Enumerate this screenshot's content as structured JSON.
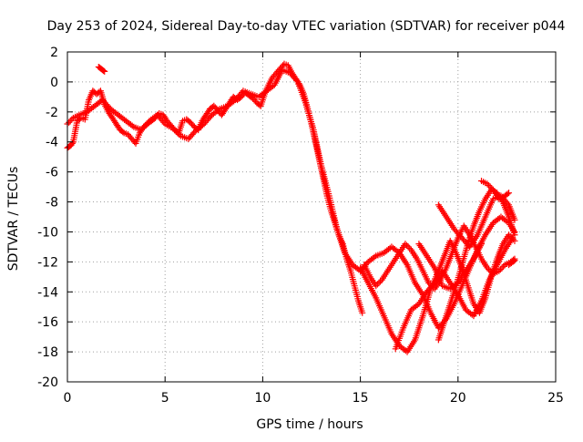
{
  "chart_data": {
    "type": "scatter",
    "title": "Day 253 of 2024, Sidereal Day-to-day VTEC variation (SDTVAR) for receiver p044",
    "xlabel": "GPS time / hours",
    "ylabel": "SDTVAR / TECUs",
    "xlim": [
      0,
      25
    ],
    "ylim": [
      -20,
      2
    ],
    "xticks": [
      "0",
      "5",
      "10",
      "15",
      "20",
      "25"
    ],
    "yticks": [
      "2",
      "0",
      "-2",
      "-4",
      "-6",
      "-8",
      "-10",
      "-12",
      "-14",
      "-16",
      "-18",
      "-20"
    ],
    "grid": true,
    "marker": "plus",
    "color": "#ff0000",
    "series": [
      {
        "x": [
          0.0,
          0.1,
          0.2,
          0.3,
          0.5,
          0.7,
          0.9,
          1.1,
          1.3,
          1.5,
          1.7,
          1.9,
          2.1,
          2.3,
          2.5,
          2.7,
          2.9,
          3.1,
          3.3,
          3.5,
          3.7,
          3.9,
          4.1,
          4.3,
          4.5,
          4.7,
          4.9,
          5.1,
          5.3,
          5.5,
          5.7,
          5.9,
          6.1,
          6.3,
          6.5,
          6.7,
          6.9,
          7.1,
          7.3,
          7.5,
          7.7,
          7.9,
          8.1,
          8.3,
          8.5,
          8.7,
          8.9,
          9.1,
          9.3,
          9.5,
          9.7,
          9.9,
          10.1,
          10.3,
          10.5,
          10.7,
          10.9,
          11.1,
          11.3,
          11.5,
          11.7,
          11.9,
          12.1,
          12.3,
          12.5,
          12.7,
          12.9,
          13.1,
          13.3,
          13.5,
          13.7,
          13.9,
          14.1,
          14.3,
          14.5,
          14.7,
          14.9,
          15.1
        ],
        "y": [
          -4.4,
          -4.3,
          -4.2,
          -4.0,
          -2.6,
          -2.4,
          -2.5,
          -1.2,
          -0.6,
          -0.8,
          -0.6,
          -1.5,
          -2.0,
          -2.4,
          -2.8,
          -3.2,
          -3.4,
          -3.5,
          -3.8,
          -4.1,
          -3.4,
          -3.0,
          -2.8,
          -2.6,
          -2.4,
          -2.1,
          -2.2,
          -2.6,
          -2.9,
          -3.2,
          -3.4,
          -2.6,
          -2.5,
          -2.7,
          -3.0,
          -3.2,
          -2.6,
          -2.2,
          -1.8,
          -1.6,
          -1.9,
          -2.2,
          -1.8,
          -1.4,
          -1.0,
          -1.2,
          -1.0,
          -0.7,
          -0.9,
          -1.1,
          -1.4,
          -1.6,
          -0.8,
          -0.2,
          0.3,
          0.6,
          0.9,
          1.2,
          1.1,
          0.6,
          0.2,
          -0.2,
          -0.8,
          -1.8,
          -2.8,
          -4.0,
          -5.2,
          -6.4,
          -7.6,
          -8.6,
          -9.4,
          -10.2,
          -10.8,
          -11.8,
          -12.6,
          -13.6,
          -14.6,
          -15.4
        ]
      },
      {
        "x": [
          0.0,
          0.3,
          0.6,
          1.0,
          1.4,
          1.8,
          2.2,
          2.6,
          3.0,
          3.4,
          3.8,
          4.2,
          4.6,
          5.0,
          5.4,
          5.8,
          6.2,
          6.6,
          7.0,
          7.4,
          7.8,
          8.2,
          8.6,
          9.0,
          9.4,
          9.8,
          10.2,
          10.6,
          11.0,
          11.4,
          11.8,
          12.2,
          12.6,
          13.0,
          13.4,
          13.8,
          14.2,
          14.6,
          15.0,
          15.4,
          15.8,
          16.2,
          16.6,
          17.0,
          17.4,
          17.8,
          18.2,
          18.6,
          19.0,
          19.4,
          19.8,
          20.2,
          20.6,
          21.0,
          21.4,
          21.8,
          22.2,
          22.6,
          22.9
        ],
        "y": [
          -2.8,
          -2.4,
          -2.2,
          -2.0,
          -1.6,
          -1.2,
          -1.8,
          -2.2,
          -2.6,
          -3.0,
          -3.2,
          -2.6,
          -2.2,
          -2.8,
          -3.1,
          -3.6,
          -3.8,
          -3.2,
          -2.8,
          -2.2,
          -1.8,
          -1.6,
          -1.2,
          -0.6,
          -0.8,
          -1.0,
          -0.6,
          -0.2,
          0.8,
          0.6,
          0.0,
          -1.4,
          -3.2,
          -5.6,
          -7.6,
          -9.8,
          -11.4,
          -12.2,
          -12.6,
          -12.0,
          -11.6,
          -11.4,
          -11.0,
          -11.4,
          -12.2,
          -13.4,
          -14.2,
          -15.4,
          -16.4,
          -15.8,
          -14.8,
          -13.6,
          -12.4,
          -11.2,
          -10.2,
          -9.4,
          -9.0,
          -9.4,
          -10.0
        ]
      },
      {
        "x": [
          15.2,
          15.5,
          15.8,
          16.1,
          16.4,
          16.7,
          17.0,
          17.3,
          17.6,
          17.9,
          18.2,
          18.5,
          18.8,
          19.1,
          19.4,
          19.7,
          20.0,
          20.3,
          20.6,
          20.9,
          21.2,
          21.5,
          21.8,
          22.1,
          22.4,
          22.7,
          22.9
        ],
        "y": [
          -12.2,
          -13.0,
          -13.6,
          -13.2,
          -12.6,
          -12.0,
          -11.4,
          -10.8,
          -11.2,
          -11.8,
          -12.6,
          -13.4,
          -13.8,
          -13.2,
          -12.4,
          -11.4,
          -10.4,
          -9.6,
          -10.2,
          -11.0,
          -11.8,
          -12.4,
          -12.8,
          -12.6,
          -12.2,
          -12.0,
          -11.8
        ]
      },
      {
        "x": [
          15.0,
          15.4,
          15.8,
          16.2,
          16.6,
          17.0,
          17.4,
          17.8,
          18.2,
          18.6,
          19.0,
          19.3,
          19.6,
          19.9,
          20.2,
          20.5,
          20.8,
          21.1,
          21.4,
          21.7,
          22.0,
          22.3,
          22.6,
          22.9
        ],
        "y": [
          -12.4,
          -13.4,
          -14.4,
          -15.6,
          -16.8,
          -17.6,
          -18.0,
          -17.2,
          -15.6,
          -13.8,
          -12.6,
          -11.6,
          -10.6,
          -11.4,
          -12.4,
          -13.6,
          -14.8,
          -15.4,
          -14.4,
          -13.0,
          -11.8,
          -10.8,
          -10.2,
          -10.6
        ]
      },
      {
        "x": [
          16.8,
          17.2,
          17.6,
          18.0,
          18.4,
          18.8,
          19.2,
          19.6,
          20.0,
          20.4,
          20.8,
          21.2,
          21.6,
          22.0,
          22.4,
          22.8
        ],
        "y": [
          -17.8,
          -16.4,
          -15.2,
          -14.8,
          -14.0,
          -13.4,
          -12.6,
          -13.4,
          -14.2,
          -15.2,
          -15.6,
          -14.6,
          -13.2,
          -12.2,
          -11.2,
          -10.4
        ]
      },
      {
        "x": [
          19.0,
          19.3,
          19.6,
          19.9,
          20.2,
          20.5,
          20.8,
          21.1,
          21.4,
          21.7,
          22.0,
          22.3,
          22.6,
          22.9
        ],
        "y": [
          -17.2,
          -16.0,
          -14.8,
          -13.6,
          -12.2,
          -10.8,
          -9.6,
          -8.6,
          -7.8,
          -7.2,
          -7.4,
          -8.0,
          -9.0,
          -10.2
        ]
      },
      {
        "x": [
          19.0,
          19.4,
          19.8,
          20.2,
          20.6,
          21.0,
          21.4,
          21.8,
          22.2,
          22.6,
          22.9
        ],
        "y": [
          -8.2,
          -9.0,
          -9.8,
          -10.4,
          -11.0,
          -10.2,
          -9.0,
          -7.8,
          -7.6,
          -8.2,
          -9.2
        ]
      },
      {
        "x": [
          18.0,
          18.4,
          18.8,
          19.2,
          19.6,
          20.0,
          20.4,
          20.8,
          21.2
        ],
        "y": [
          -10.8,
          -11.6,
          -12.4,
          -13.6,
          -13.8,
          -13.4,
          -12.6,
          -11.8,
          -10.8
        ]
      },
      {
        "x": [
          21.2,
          21.5,
          21.8,
          22.1,
          22.4,
          22.6
        ],
        "y": [
          -6.6,
          -6.8,
          -7.2,
          -7.8,
          -7.6,
          -7.4
        ]
      },
      {
        "x": [
          1.6,
          1.7,
          1.8,
          1.9
        ],
        "y": [
          1.0,
          0.9,
          0.8,
          0.7
        ]
      },
      {
        "x": [
          22.6,
          22.8,
          22.9
        ],
        "y": [
          -12.2,
          -12.0,
          -11.9
        ]
      }
    ]
  }
}
